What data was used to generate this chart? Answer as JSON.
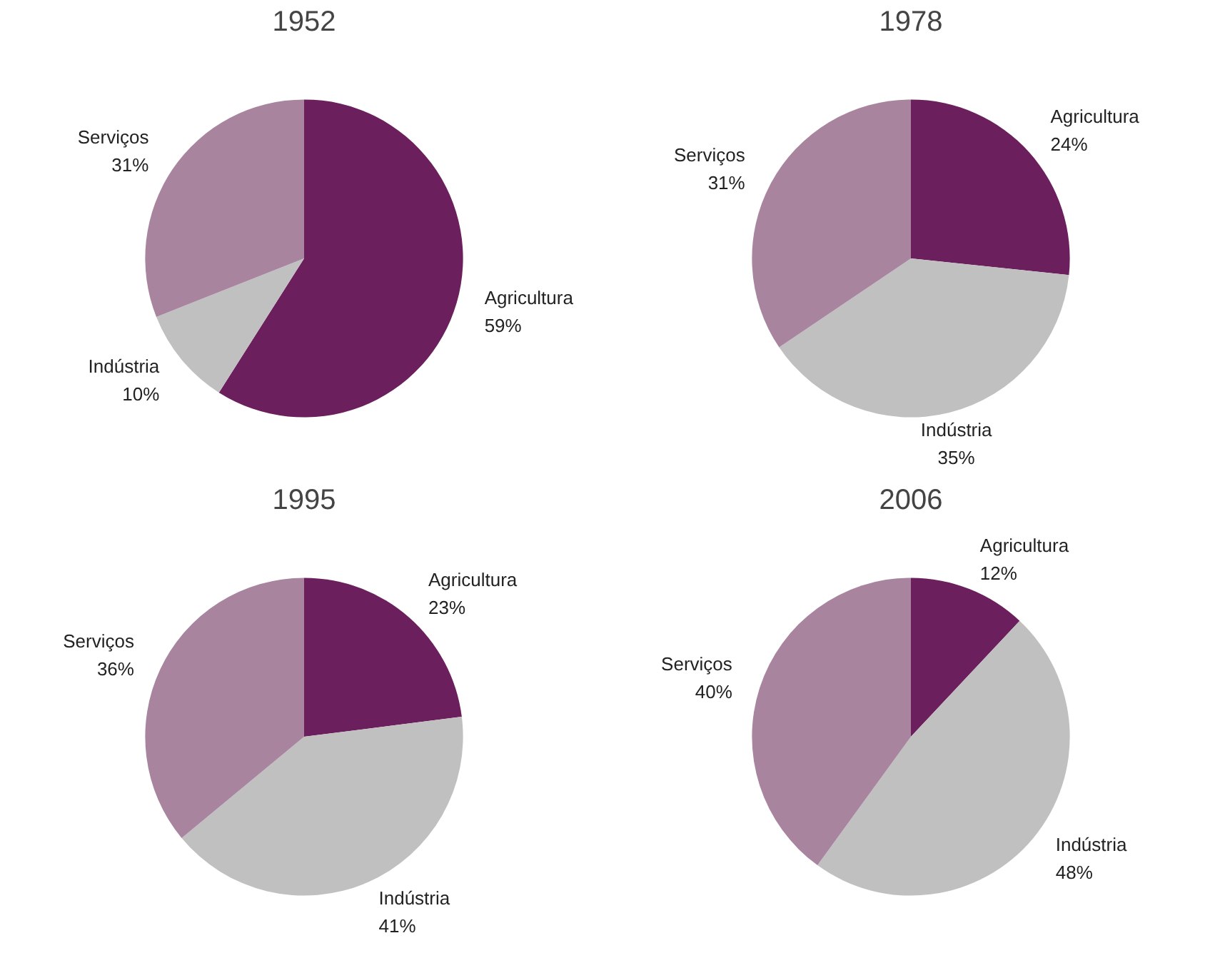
{
  "chart_data": [
    {
      "type": "pie",
      "title": "1952",
      "categories": [
        "Agricultura",
        "Indústria",
        "Serviços"
      ],
      "values": [
        59,
        10,
        31
      ],
      "colors": [
        "#6b1f5c",
        "#c0c0c0",
        "#a8849f"
      ],
      "value_labels": [
        "59%",
        "10%",
        "31%"
      ]
    },
    {
      "type": "pie",
      "title": "1978",
      "categories": [
        "Agricultura",
        "Indústria",
        "Serviços"
      ],
      "values": [
        24,
        35,
        31
      ],
      "colors": [
        "#6b1f5c",
        "#c0c0c0",
        "#a8849f"
      ],
      "value_labels": [
        "24%",
        "35%",
        "31%"
      ]
    },
    {
      "type": "pie",
      "title": "1995",
      "categories": [
        "Agricultura",
        "Indústria",
        "Serviços"
      ],
      "values": [
        23,
        41,
        36
      ],
      "colors": [
        "#6b1f5c",
        "#c0c0c0",
        "#a8849f"
      ],
      "value_labels": [
        "23%",
        "41%",
        "36%"
      ]
    },
    {
      "type": "pie",
      "title": "2006",
      "categories": [
        "Agricultura",
        "Indústria",
        "Serviços"
      ],
      "values": [
        12,
        48,
        40
      ],
      "colors": [
        "#6b1f5c",
        "#c0c0c0",
        "#a8849f"
      ],
      "value_labels": [
        "12%",
        "48%",
        "40%"
      ]
    }
  ]
}
